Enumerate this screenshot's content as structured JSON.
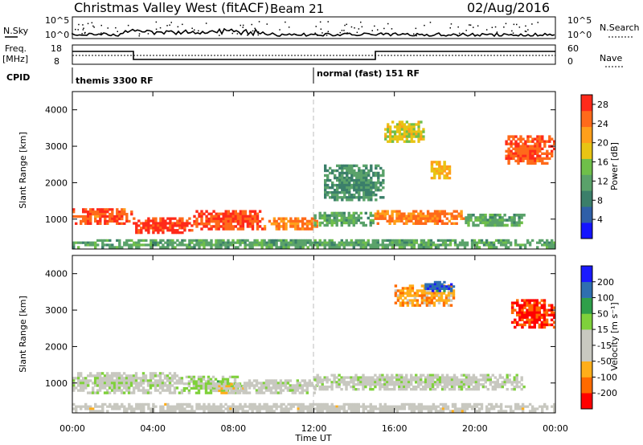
{
  "header": {
    "station": "Christmas Valley West (fitACF)",
    "beam": "Beam 21",
    "date": "02/Aug/2016"
  },
  "noise_panel": {
    "left_label": "N.Sky",
    "right_label": "N.Search",
    "left_ticks": [
      "10^5",
      "10^0"
    ],
    "right_ticks": [
      "10^5",
      "10^0"
    ]
  },
  "freq_panel": {
    "left_label_1": "Freq.",
    "left_label_2": "[MHz]",
    "right_label": "Nave",
    "left_ticks": [
      "18",
      "8"
    ],
    "right_ticks": [
      "60",
      "0"
    ]
  },
  "cpid": {
    "label": "CPID",
    "segments": [
      {
        "text": "themis 3300 RF",
        "start_hour": 0
      },
      {
        "text": "normal (fast) 151 RF",
        "start_hour": 12
      }
    ]
  },
  "colors": {
    "frame": "#000000",
    "noon_line": "#bdbdbd",
    "power_scale": [
      "#1414ff",
      "#2f5fa8",
      "#3b7f6a",
      "#5aa26a",
      "#6fbf4a",
      "#e8c414",
      "#ff9f1a",
      "#ff6a1a",
      "#ff2a1a"
    ],
    "velocity_scale": [
      "#ff0000",
      "#ff6a00",
      "#ffae1a",
      "#c8c8c0",
      "#c8c8c0",
      "#7fd13b",
      "#2f9f4a",
      "#2f6fb0",
      "#1a1aff"
    ]
  },
  "chart_data": [
    {
      "type": "heatmap",
      "title": "",
      "xlabel": "Time UT",
      "ylabel": "Slant Range [km]",
      "x_ticks": [
        "00:00",
        "04:00",
        "08:00",
        "12:00",
        "16:00",
        "20:00",
        "00:00"
      ],
      "xlim_hours": [
        0,
        24
      ],
      "y_ticks": [
        1000,
        2000,
        3000,
        4000
      ],
      "ylim": [
        180,
        4500
      ],
      "colorbar": {
        "label": "Power [dB]",
        "ticks": [
          4,
          8,
          12,
          16,
          20,
          24,
          28
        ],
        "range": [
          0,
          30
        ]
      },
      "echo_regions": [
        {
          "t_start": 0.0,
          "t_end": 3.0,
          "r_min": 850,
          "r_max": 1300,
          "value": 26
        },
        {
          "t_start": 3.0,
          "t_end": 6.0,
          "r_min": 600,
          "r_max": 1050,
          "value": 28
        },
        {
          "t_start": 6.0,
          "t_end": 9.5,
          "r_min": 700,
          "r_max": 1250,
          "value": 27
        },
        {
          "t_start": 9.5,
          "t_end": 12.2,
          "r_min": 700,
          "r_max": 1050,
          "value": 24
        },
        {
          "t_start": 12.0,
          "t_end": 15.0,
          "r_min": 800,
          "r_max": 1200,
          "value": 12
        },
        {
          "t_start": 15.0,
          "t_end": 19.5,
          "r_min": 850,
          "r_max": 1250,
          "value": 24
        },
        {
          "t_start": 19.5,
          "t_end": 22.5,
          "r_min": 800,
          "r_max": 1150,
          "value": 12
        },
        {
          "t_start": 12.5,
          "t_end": 15.5,
          "r_min": 1500,
          "r_max": 2500,
          "value": 10
        },
        {
          "t_start": 15.5,
          "t_end": 17.5,
          "r_min": 3100,
          "r_max": 3700,
          "value": 18
        },
        {
          "t_start": 17.8,
          "t_end": 18.8,
          "r_min": 2100,
          "r_max": 2600,
          "value": 20
        },
        {
          "t_start": 21.5,
          "t_end": 24.0,
          "r_min": 2500,
          "r_max": 3300,
          "value": 26
        },
        {
          "t_start": 0.0,
          "t_end": 24.0,
          "r_min": 200,
          "r_max": 450,
          "value": 12
        }
      ]
    },
    {
      "type": "heatmap",
      "title": "",
      "xlabel": "Time UT",
      "ylabel": "Slant Range [km]",
      "x_ticks": [
        "00:00",
        "04:00",
        "08:00",
        "12:00",
        "16:00",
        "20:00",
        "00:00"
      ],
      "xlim_hours": [
        0,
        24
      ],
      "y_ticks": [
        1000,
        2000,
        3000,
        4000
      ],
      "ylim": [
        180,
        4500
      ],
      "colorbar": {
        "label": "Velocity [m s⁻¹]",
        "ticks": [
          "-200",
          "-100",
          "-50",
          "-15",
          "15",
          "50",
          "100",
          "200"
        ],
        "range": [
          -250,
          250
        ]
      },
      "echo_regions": [
        {
          "t_start": 0.0,
          "t_end": 5.5,
          "r_min": 700,
          "r_max": 1300,
          "value": 0
        },
        {
          "t_start": 5.5,
          "t_end": 8.5,
          "r_min": 700,
          "r_max": 1200,
          "value": 40
        },
        {
          "t_start": 7.0,
          "t_end": 8.8,
          "r_min": 700,
          "r_max": 1000,
          "value": -60
        },
        {
          "t_start": 8.5,
          "t_end": 12.2,
          "r_min": 700,
          "r_max": 1100,
          "value": 0
        },
        {
          "t_start": 12.0,
          "t_end": 22.5,
          "r_min": 800,
          "r_max": 1250,
          "value": 0
        },
        {
          "t_start": 16.0,
          "t_end": 19.0,
          "r_min": 3100,
          "r_max": 3700,
          "value": -120
        },
        {
          "t_start": 17.5,
          "t_end": 19.0,
          "r_min": 3500,
          "r_max": 3800,
          "value": 180
        },
        {
          "t_start": 21.8,
          "t_end": 24.0,
          "r_min": 2500,
          "r_max": 3300,
          "value": -200
        },
        {
          "t_start": 0.0,
          "t_end": 24.0,
          "r_min": 200,
          "r_max": 450,
          "value": -40
        }
      ]
    }
  ]
}
